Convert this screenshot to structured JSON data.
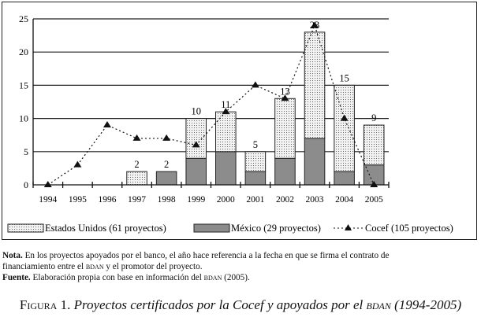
{
  "chart_data": {
    "type": "bar",
    "stacked": true,
    "categories": [
      "1994",
      "1995",
      "1996",
      "1997",
      "1998",
      "1999",
      "2000",
      "2001",
      "2002",
      "2003",
      "2004",
      "2005"
    ],
    "series": [
      {
        "name": "México (29 proyectos)",
        "type": "bar",
        "values": [
          0,
          0,
          0,
          0,
          2,
          4,
          5,
          2,
          4,
          7,
          2,
          3
        ],
        "color": "#8c8c8c"
      },
      {
        "name": "Estados Unidos (61 proyectos)",
        "type": "bar",
        "values": [
          0,
          0,
          0,
          2,
          0,
          6,
          6,
          3,
          9,
          16,
          13,
          6
        ],
        "color": "#ececec",
        "pattern": "dotted"
      },
      {
        "name": "Cocef (105 proyectos)",
        "type": "line",
        "values": [
          0,
          3,
          9,
          7,
          7,
          6,
          11,
          15,
          13,
          24,
          10,
          0
        ],
        "color": "#111111",
        "style": "dotted",
        "marker": "triangle"
      }
    ],
    "bar_labels": [
      "",
      "",
      "",
      "2",
      "2",
      "10",
      "11",
      "5",
      "13",
      "23",
      "15",
      "9"
    ],
    "yticks": [
      0,
      5,
      10,
      15,
      20,
      25
    ],
    "ylim": [
      0,
      25
    ],
    "grid": true,
    "legend": "bottom"
  },
  "legend": {
    "us": "Estados Unidos (61 proyectos)",
    "mx": "México (29 proyectos)",
    "cocef": "Cocef (105 proyectos)"
  },
  "note": {
    "label": "Nota.",
    "text1": "En los proyectos apoyados por el banco, el año hace referencia a la fecha en que se firma el contrato de",
    "text2a": "financiamiento entre el ",
    "bdan": "bdan",
    "text2b": " y el promotor del proyecto."
  },
  "source": {
    "label": "Fuente.",
    "text_a": "Elaboración propia con base en información del ",
    "bdan": "bdan",
    "text_b": " (2005)."
  },
  "caption": {
    "label": "Figura 1.",
    "text_a": "Proyectos certificados por la Cocef y apoyados por el ",
    "bdan": "bdan",
    "text_b": " (1994-2005)"
  }
}
